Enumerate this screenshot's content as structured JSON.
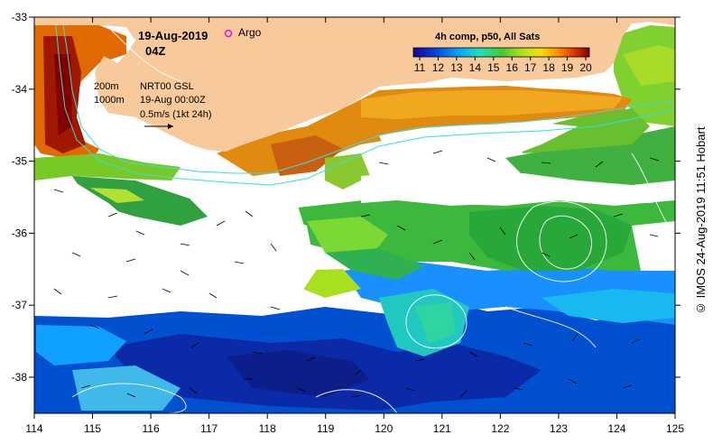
{
  "header": {
    "date": "19-Aug-2019",
    "time": "04Z",
    "argo_label": "Argo",
    "composite_label": "4h comp, p50, All Sats"
  },
  "legend": {
    "isobath_1": "200m",
    "isobath_2": "1000m",
    "sea_level": "NRT00 GSL",
    "sea_level_time": "19-Aug 00:00Z",
    "velocity_scale": "0.5m/s (1kt 24h)"
  },
  "colorbar": {
    "ticks": [
      "11",
      "12",
      "13",
      "14",
      "15",
      "16",
      "17",
      "18",
      "19",
      "20"
    ],
    "colors": [
      "#2a0080",
      "#0028c8",
      "#0066ff",
      "#00b4ff",
      "#1ee6c8",
      "#3cc83c",
      "#9ce028",
      "#f0e614",
      "#ff9600",
      "#e03c00",
      "#b40000",
      "#780000"
    ]
  },
  "axes": {
    "x_ticks": [
      "114",
      "115",
      "116",
      "117",
      "118",
      "119",
      "120",
      "121",
      "122",
      "123",
      "124",
      "125"
    ],
    "y_ticks": [
      "-33",
      "-34",
      "-35",
      "-36",
      "-37",
      "-38"
    ]
  },
  "colors": {
    "land": "#f8c99a",
    "contour": "#ffffff",
    "isobath": "#33e0e0",
    "argo": "#e020e0"
  },
  "credit": "© IMOS 24-Aug-2019 11:51 Hobart"
}
